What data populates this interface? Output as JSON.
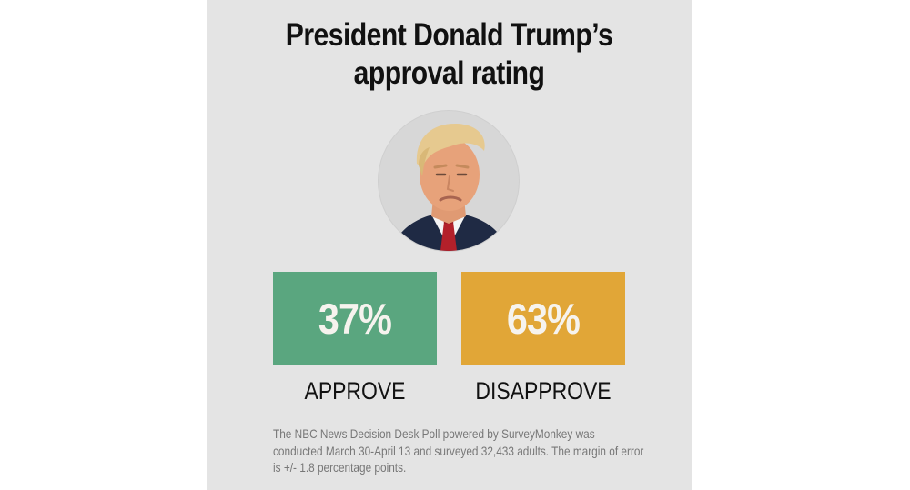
{
  "chart_data": {
    "type": "table",
    "title": "President Donald Trump’s approval rating",
    "title_lines": [
      "President Donald Trump’s",
      "approval rating"
    ],
    "categories": [
      "APPROVE",
      "DISAPPROVE"
    ],
    "values": [
      37,
      63
    ],
    "value_labels": [
      "37%",
      "63%"
    ],
    "unit": "%",
    "footnote": "The NBC News Decision Desk Poll powered by SurveyMonkey was conducted March 30-April 13 and surveyed 32,433 adults. The margin of error is +/- 1.8 percentage points.",
    "footnote_lines": [
      "The NBC News Decision Desk Poll powered by SurveyMonkey was",
      "conducted March 30-April 13 and surveyed 32,433 adults. The margin of",
      "error is +/- 1.8 percentage points."
    ]
  },
  "colors": {
    "background": "#e4e4e4",
    "approve": "#5aa67f",
    "disapprove": "#e1a637",
    "value_text": "#f6f3ee"
  },
  "icons": {
    "portrait": "president-portrait-icon"
  }
}
